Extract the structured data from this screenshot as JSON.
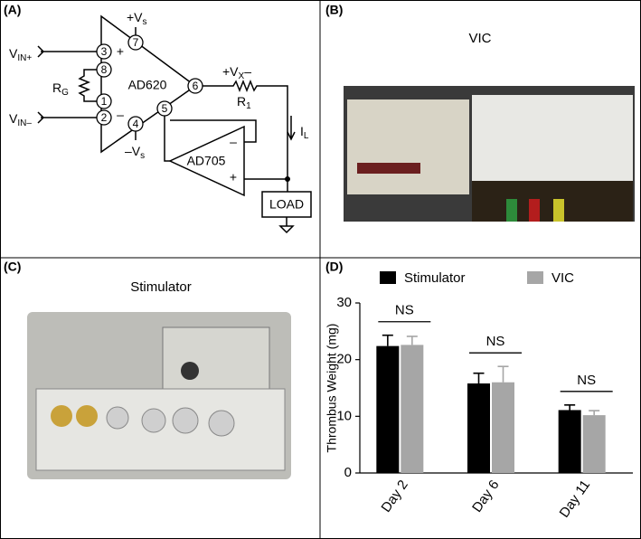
{
  "panels": {
    "a": {
      "label": "(A)"
    },
    "b": {
      "label": "(B)",
      "title": "VIC"
    },
    "c": {
      "label": "(C)",
      "title": "Stimulator"
    },
    "d": {
      "label": "(D)"
    }
  },
  "circuit": {
    "vin_plus": {
      "main": "V",
      "sub": "IN+"
    },
    "vin_minus": {
      "main": "V",
      "sub": "IN–"
    },
    "rg": {
      "main": "R",
      "sub": "G"
    },
    "vs_plus": {
      "main": "+V",
      "sub": "s"
    },
    "vs_minus": {
      "main": "–V",
      "sub": "s"
    },
    "amp1": "AD620",
    "amp2": "AD705",
    "pins": [
      "3",
      "8",
      "1",
      "2",
      "7",
      "4",
      "6",
      "5"
    ],
    "plus": "+",
    "minus": "–",
    "vx": {
      "main": "+V",
      "sub": "X",
      "tail": "–"
    },
    "r1": {
      "main": "R",
      "sub": "1"
    },
    "il": {
      "main": "I",
      "sub": "L"
    },
    "load": "LOAD"
  },
  "chart_data": {
    "type": "bar",
    "y_label": "Thrombus Weight (mg)",
    "categories": [
      "Day 2",
      "Day 6",
      "Day 11"
    ],
    "series": [
      {
        "name": "Stimulator",
        "color": "#000000",
        "values": [
          22.4,
          15.8,
          11.1
        ],
        "errors": [
          1.9,
          1.8,
          0.9
        ]
      },
      {
        "name": "VIC",
        "color": "#a6a6a6",
        "values": [
          22.6,
          16.0,
          10.2
        ],
        "errors": [
          1.5,
          2.8,
          0.8
        ]
      }
    ],
    "ylim": [
      0,
      30
    ],
    "yticks": [
      0,
      10,
      20,
      30
    ],
    "annotations": [
      "NS",
      "NS",
      "NS"
    ],
    "legend": "top"
  }
}
